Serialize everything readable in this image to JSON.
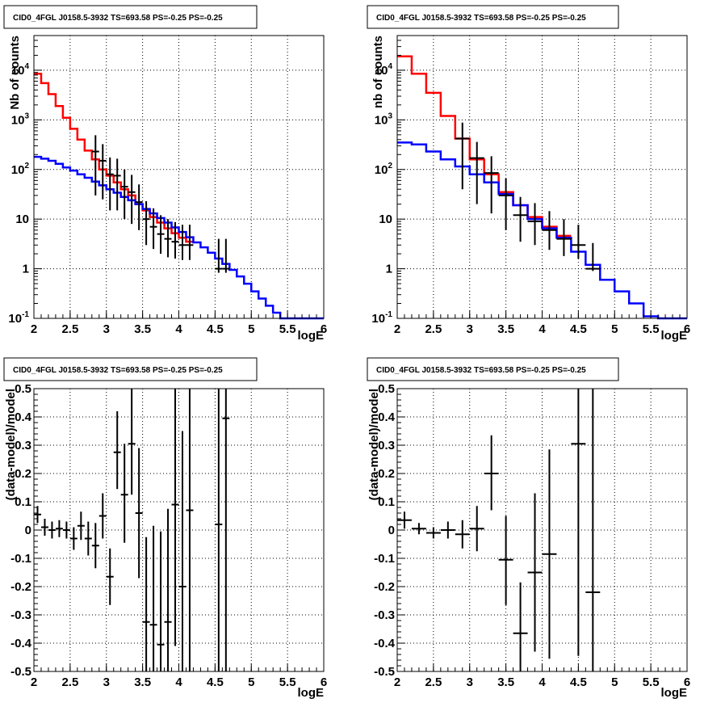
{
  "chart_data": [
    {
      "type": "line",
      "panel": "top-left",
      "title": "CID0_4FGL J0158.5-3932 TS=693.58 PS=-0.25 PS=-0.25",
      "xlabel": "logE",
      "ylabel": "Nb of counts",
      "yscale": "log",
      "xlim": [
        2,
        6
      ],
      "ylim": [
        0.1,
        50000
      ],
      "x_ticks": [
        "2",
        "2.5",
        "3",
        "3.5",
        "4",
        "4.5",
        "5",
        "5.5",
        "6"
      ],
      "y_ticks": [
        "10^-1",
        "1",
        "10",
        "10^2",
        "10^3",
        "10^4"
      ],
      "grid": true,
      "bin_edges": [
        2.0,
        2.1,
        2.2,
        2.3,
        2.4,
        2.5,
        2.6,
        2.7,
        2.8,
        2.9,
        3.0,
        3.1,
        3.2,
        3.3,
        3.4,
        3.5,
        3.6,
        3.7,
        3.8,
        3.9,
        4.0,
        4.1,
        4.2,
        4.3,
        4.4,
        4.5,
        4.6,
        4.7,
        4.8,
        4.9,
        5.0,
        5.1,
        5.2,
        5.3,
        5.4,
        5.5,
        5.6,
        5.7,
        5.8,
        5.9,
        6.0
      ],
      "series": [
        {
          "color": "#ff0000",
          "values": [
            8500,
            5500,
            3300,
            1900,
            1100,
            660,
            400,
            240,
            160,
            100,
            75,
            55,
            40,
            30,
            20,
            15,
            11,
            8.5,
            6.5,
            5.2,
            4.2,
            3.5
          ]
        },
        {
          "color": "#0000ff",
          "values": [
            180,
            165,
            150,
            130,
            110,
            95,
            80,
            68,
            57,
            48,
            40,
            34,
            28,
            24,
            20,
            16,
            13,
            10.5,
            8.5,
            6.8,
            5.5,
            4.3,
            3.4,
            2.7,
            2.1,
            1.6,
            1.25,
            0.95,
            0.7,
            0.5,
            0.35,
            0.25,
            0.18,
            0.13,
            0.1,
            0.1,
            0.1,
            0.1,
            0.1,
            0.1
          ]
        },
        {
          "color": "#000000",
          "x": [
            2.85,
            2.95,
            3.05,
            3.15,
            3.25,
            3.35,
            3.45,
            3.55,
            3.65,
            3.75,
            3.85,
            3.95,
            4.05,
            4.15,
            4.55,
            4.65
          ],
          "y": [
            230,
            150,
            80,
            75,
            45,
            35,
            22,
            10,
            7,
            5,
            4,
            3.5,
            3,
            3,
            1,
            1
          ],
          "xerr": 0.05,
          "yerr_lo": [
            200,
            125,
            65,
            60,
            35,
            27,
            16,
            7,
            4.5,
            3,
            2.3,
            1.9,
            1.5,
            1.5,
            0.17,
            0.17
          ],
          "yerr_hi": [
            260,
            175,
            95,
            90,
            55,
            43,
            28,
            13,
            9.5,
            7,
            6,
            5.2,
            4.7,
            4.7,
            3,
            3
          ]
        }
      ]
    },
    {
      "type": "line",
      "panel": "top-right",
      "title": "CID0_4FGL J0158.5-3932 TS=693.58 PS=-0.25 PS=-0.25",
      "xlabel": "logE",
      "ylabel": "nb of counts",
      "yscale": "log",
      "xlim": [
        2,
        6
      ],
      "ylim": [
        0.1,
        50000
      ],
      "x_ticks": [
        "2",
        "2.5",
        "3",
        "3.5",
        "4",
        "4.5",
        "5",
        "5.5",
        "6"
      ],
      "y_ticks": [
        "10^-1",
        "1",
        "10",
        "10^2",
        "10^3",
        "10^4"
      ],
      "grid": true,
      "bin_edges": [
        2.0,
        2.2,
        2.4,
        2.6,
        2.8,
        3.0,
        3.2,
        3.4,
        3.6,
        3.8,
        4.0,
        4.2,
        4.4,
        4.6,
        4.8,
        5.0,
        5.2,
        5.4,
        5.6,
        5.8,
        6.0
      ],
      "series": [
        {
          "color": "#ff0000",
          "values": [
            19000,
            8500,
            3500,
            1200,
            420,
            160,
            80,
            35,
            19,
            11,
            7,
            4.6
          ]
        },
        {
          "color": "#0000ff",
          "values": [
            350,
            320,
            230,
            160,
            115,
            80,
            55,
            32,
            19,
            10,
            6.5,
            4.2,
            2.2,
            1.2,
            0.6,
            0.35,
            0.2,
            0.11,
            0.1,
            0.1
          ]
        },
        {
          "color": "#000000",
          "x": [
            2.9,
            3.1,
            3.3,
            3.5,
            3.7,
            3.9,
            4.1,
            4.3,
            4.5,
            4.7
          ],
          "y": [
            420,
            170,
            85,
            30,
            12,
            9,
            6,
            4,
            3,
            1
          ],
          "xerr": 0.1,
          "yerr_lo": [
            380,
            150,
            72,
            24,
            8.5,
            6,
            3.6,
            2.2,
            1.4,
            0.1
          ],
          "yerr_hi": [
            460,
            190,
            100,
            36,
            16,
            12,
            8.5,
            6,
            4.7,
            2.3
          ]
        }
      ]
    },
    {
      "type": "scatter",
      "panel": "bottom-left",
      "title": "CID0_4FGL J0158.5-3932 TS=693.58 PS=-0.25 PS=-0.25",
      "xlabel": "logE",
      "ylabel": "(data-model)/model",
      "xlim": [
        2,
        6
      ],
      "ylim": [
        -0.5,
        0.5
      ],
      "x_ticks": [
        "2",
        "2.5",
        "3",
        "3.5",
        "4",
        "4.5",
        "5",
        "5.5",
        "6"
      ],
      "y_ticks": [
        "-0.5",
        "-0.4",
        "-0.3",
        "-0.2",
        "-0.1",
        "0",
        "0.1",
        "0.2",
        "0.3",
        "0.4",
        "0.5"
      ],
      "grid": true,
      "x": [
        2.05,
        2.15,
        2.25,
        2.35,
        2.45,
        2.55,
        2.65,
        2.75,
        2.85,
        2.95,
        3.05,
        3.15,
        3.25,
        3.35,
        3.45,
        3.55,
        3.65,
        3.75,
        3.85,
        3.95,
        4.05,
        4.15,
        4.55,
        4.65
      ],
      "y": [
        0.055,
        0.01,
        0.0,
        0.005,
        0.0,
        -0.03,
        0.015,
        -0.03,
        -0.055,
        0.05,
        -0.165,
        0.275,
        0.125,
        0.305,
        0.06,
        -0.325,
        -0.335,
        -0.405,
        -0.325,
        0.09,
        -0.2,
        0.07,
        0.02,
        0.395
      ],
      "xerr": 0.05,
      "yerr_lo": [
        0.03,
        0.03,
        0.03,
        0.03,
        0.03,
        0.04,
        0.05,
        0.06,
        0.08,
        0.08,
        0.1,
        0.13,
        0.17,
        0.18,
        0.23,
        0.3,
        0.35,
        0.4,
        0.4,
        0.5,
        0.55,
        0.6,
        1.2,
        1.2
      ],
      "yerr_hi": [
        0.03,
        0.03,
        0.03,
        0.03,
        0.03,
        0.04,
        0.05,
        0.06,
        0.08,
        0.08,
        0.1,
        0.145,
        0.18,
        0.2,
        0.23,
        0.3,
        0.35,
        0.4,
        0.4,
        0.5,
        0.55,
        0.6,
        1.2,
        1.2
      ]
    },
    {
      "type": "scatter",
      "panel": "bottom-right",
      "title": "CID0_4FGL J0158.5-3932 TS=693.58 PS=-0.25 PS=-0.25",
      "xlabel": "logE",
      "ylabel": "(data-model)/model",
      "xlim": [
        2,
        6
      ],
      "ylim": [
        -0.5,
        0.5
      ],
      "x_ticks": [
        "2",
        "2.5",
        "3",
        "3.5",
        "4",
        "4.5",
        "5",
        "5.5",
        "6"
      ],
      "y_ticks": [
        "-0.5",
        "-0.4",
        "-0.3",
        "-0.2",
        "-0.1",
        "0",
        "0.1",
        "0.2",
        "0.3",
        "0.4",
        "0.5"
      ],
      "grid": true,
      "x": [
        2.1,
        2.3,
        2.5,
        2.7,
        2.9,
        3.1,
        3.3,
        3.5,
        3.7,
        3.9,
        4.1,
        4.5,
        4.7
      ],
      "y": [
        0.035,
        0.005,
        -0.01,
        0.0,
        -0.015,
        0.005,
        0.2,
        -0.105,
        -0.365,
        -0.15,
        -0.085,
        0.305,
        -0.22
      ],
      "xerr": 0.1,
      "yerr_lo": [
        0.03,
        0.02,
        0.02,
        0.03,
        0.05,
        0.08,
        0.13,
        0.16,
        0.18,
        0.28,
        0.37,
        0.75,
        0.9
      ],
      "yerr_hi": [
        0.03,
        0.02,
        0.02,
        0.03,
        0.05,
        0.08,
        0.135,
        0.155,
        0.18,
        0.28,
        0.37,
        0.75,
        0.9
      ]
    }
  ]
}
